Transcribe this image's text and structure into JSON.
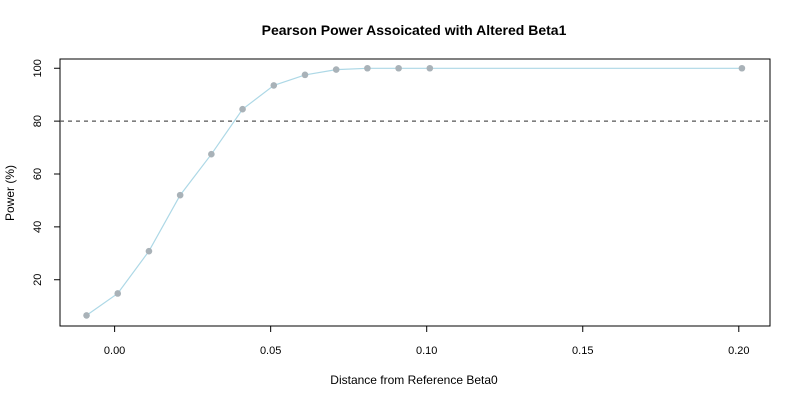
{
  "chart_data": {
    "type": "line",
    "title": "Pearson Power Assoicated with Altered Beta1",
    "xlabel": "Distance from Reference Beta0",
    "ylabel": "Power (%)",
    "xlim": [
      -0.0175,
      0.21
    ],
    "ylim": [
      2.5,
      103.5
    ],
    "x_ticks": [
      0.0,
      0.05,
      0.1,
      0.15,
      0.2
    ],
    "x_tick_labels": [
      "0.00",
      "0.05",
      "0.10",
      "0.15",
      "0.20"
    ],
    "y_ticks": [
      20,
      40,
      60,
      80,
      100
    ],
    "y_tick_labels": [
      "20",
      "40",
      "60",
      "80",
      "100"
    ],
    "grid": false,
    "reference_line": {
      "y": 80,
      "style": "dashed",
      "color": "#555555"
    },
    "series": [
      {
        "x": [
          -0.009,
          0.001,
          0.011,
          0.021,
          0.031,
          0.041,
          0.051,
          0.061,
          0.071,
          0.081,
          0.091,
          0.101,
          0.201
        ],
        "y": [
          6.5,
          14.8,
          30.8,
          52.0,
          67.5,
          84.5,
          93.5,
          97.5,
          99.5,
          100,
          100,
          100,
          100
        ],
        "line_color": "#add8e6",
        "marker_color": "#a9b2b8"
      }
    ]
  }
}
